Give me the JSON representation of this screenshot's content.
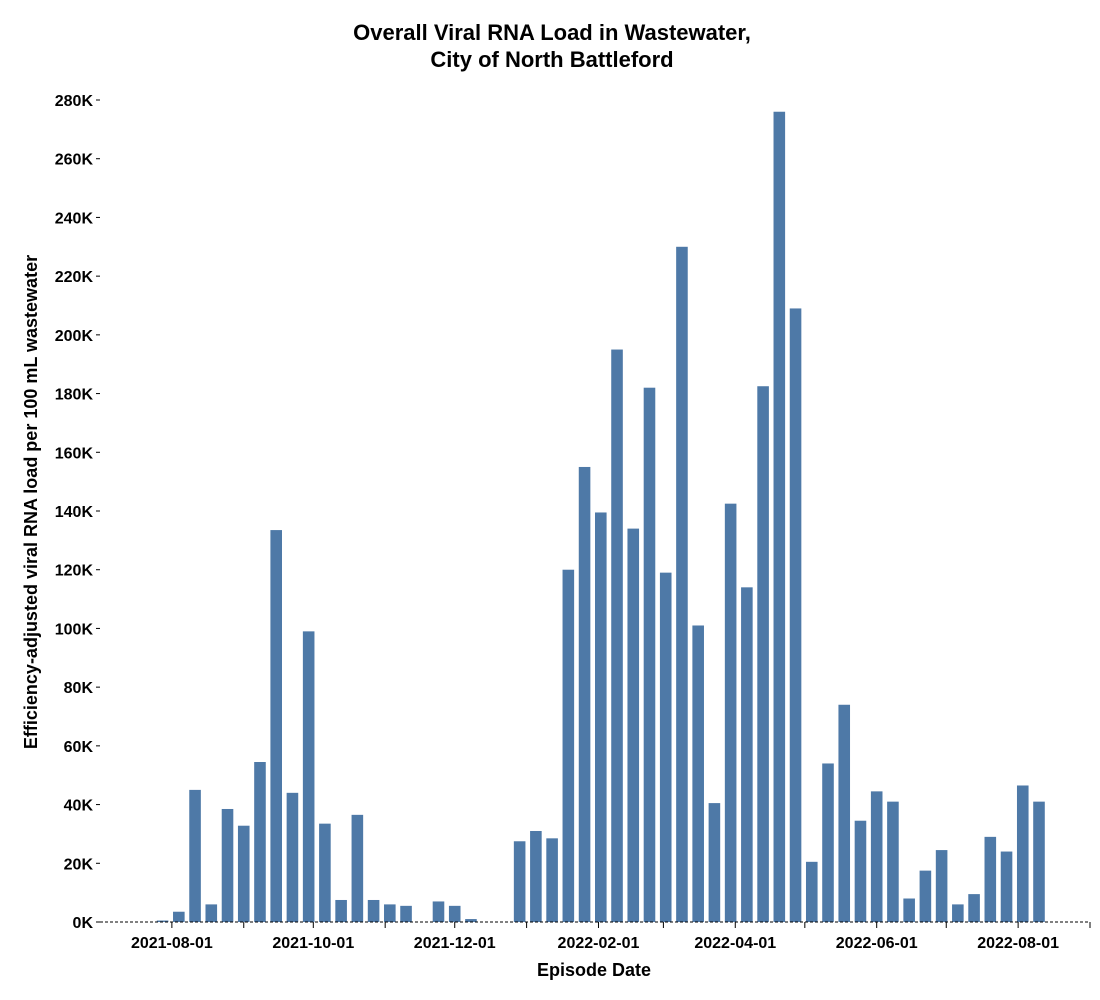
{
  "chart_data": {
    "type": "bar",
    "title": [
      "Overall Viral RNA Load in Wastewater,",
      "City of North Battleford"
    ],
    "xlabel": "Episode Date",
    "ylabel": "Efficiency-adjusted viral RNA load per 100 mL wastewater",
    "ylim": [
      0,
      280000
    ],
    "yticks": [
      0,
      20000,
      40000,
      60000,
      80000,
      100000,
      120000,
      140000,
      160000,
      180000,
      200000,
      220000,
      240000,
      260000,
      280000
    ],
    "ytick_labels": [
      "0K",
      "20K",
      "40K",
      "60K",
      "80K",
      "100K",
      "120K",
      "140K",
      "160K",
      "180K",
      "200K",
      "220K",
      "240K",
      "260K",
      "280K"
    ],
    "xlim": [
      "2021-07-01",
      "2022-09-01"
    ],
    "xticks": [
      "2021-08-01",
      "2021-10-01",
      "2021-12-01",
      "2022-02-01",
      "2022-04-01",
      "2022-06-01",
      "2022-08-01"
    ],
    "xtick_labels": [
      "2021-08-01",
      "2021-10-01",
      "2021-12-01",
      "2022-02-01",
      "2022-04-01",
      "2022-06-01",
      "2022-08-01"
    ],
    "minor_xticks": [
      "2021-09-01",
      "2021-11-01",
      "2022-01-01",
      "2022-03-01",
      "2022-05-01",
      "2022-07-01",
      "2022-09-01"
    ],
    "grid": false,
    "legend": "none",
    "color": "#4e79a7",
    "bar_width_days": 5,
    "x": [
      "2021-07-28",
      "2021-08-04",
      "2021-08-11",
      "2021-08-18",
      "2021-08-25",
      "2021-09-01",
      "2021-09-08",
      "2021-09-15",
      "2021-09-22",
      "2021-09-29",
      "2021-10-06",
      "2021-10-13",
      "2021-10-20",
      "2021-10-27",
      "2021-11-03",
      "2021-11-10",
      "2021-11-17",
      "2021-11-24",
      "2021-12-01",
      "2021-12-08",
      "2021-12-15",
      "2021-12-22",
      "2021-12-29",
      "2022-01-05",
      "2022-01-12",
      "2022-01-19",
      "2022-01-26",
      "2022-02-02",
      "2022-02-09",
      "2022-02-16",
      "2022-02-23",
      "2022-03-02",
      "2022-03-09",
      "2022-03-16",
      "2022-03-23",
      "2022-03-30",
      "2022-04-06",
      "2022-04-13",
      "2022-04-20",
      "2022-04-27",
      "2022-05-04",
      "2022-05-11",
      "2022-05-18",
      "2022-05-25",
      "2022-06-01",
      "2022-06-08",
      "2022-06-15",
      "2022-06-22",
      "2022-06-29",
      "2022-07-06",
      "2022-07-13",
      "2022-07-20",
      "2022-07-27",
      "2022-08-03",
      "2022-08-10",
      "2022-08-17",
      "2022-08-24"
    ],
    "values": [
      500,
      3500,
      45000,
      6000,
      38500,
      32800,
      54500,
      133500,
      44000,
      99000,
      33500,
      7500,
      36500,
      7500,
      6000,
      5500,
      null,
      7000,
      5500,
      1000,
      null,
      null,
      27500,
      31000,
      28500,
      120000,
      155000,
      139500,
      195000,
      134000,
      182000,
      119000,
      230000,
      101000,
      40500,
      142500,
      114000,
      182500,
      276000,
      209000,
      20500,
      54000,
      74000,
      34500,
      44500,
      41000,
      8000,
      17500,
      24500,
      6000,
      9500,
      29000,
      24000,
      46500,
      41000,
      null,
      null
    ]
  }
}
